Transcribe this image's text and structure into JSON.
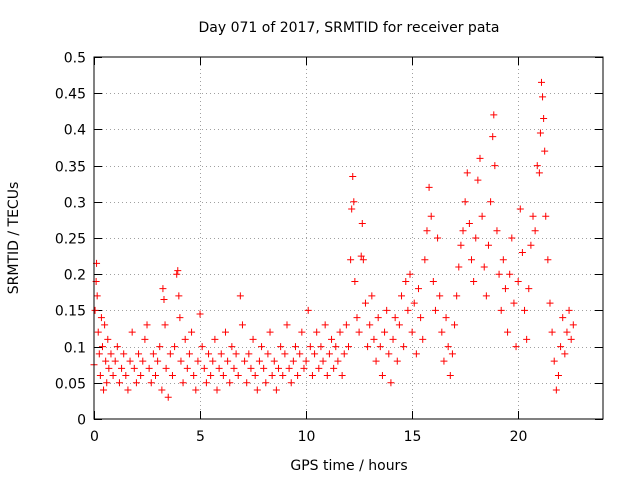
{
  "chart_data": {
    "type": "scatter",
    "title": "Day 071 of 2017, SRMTID for receiver pata",
    "xlabel": "GPS time / hours",
    "ylabel": "SRMTID / TECUs",
    "xlim": [
      0,
      24
    ],
    "ylim": [
      0,
      0.5
    ],
    "xticks": [
      0,
      5,
      10,
      15,
      20
    ],
    "xtick_labels": [
      "0",
      "5",
      "10",
      "15",
      "20"
    ],
    "yticks": [
      0,
      0.05,
      0.1,
      0.15,
      0.2,
      0.25,
      0.3,
      0.35,
      0.4,
      0.45,
      0.5
    ],
    "ytick_labels": [
      "0",
      "0.05",
      "0.1",
      "0.15",
      "0.2",
      "0.25",
      "0.3",
      "0.35",
      "0.4",
      "0.45",
      "0.5"
    ],
    "grid": true,
    "marker": "+",
    "color": "#ff0000",
    "series": [
      {
        "name": "SRMTID",
        "points": [
          [
            0.0,
            0.075
          ],
          [
            0.05,
            0.15
          ],
          [
            0.1,
            0.19
          ],
          [
            0.12,
            0.215
          ],
          [
            0.15,
            0.17
          ],
          [
            0.2,
            0.12
          ],
          [
            0.25,
            0.09
          ],
          [
            0.3,
            0.06
          ],
          [
            0.35,
            0.14
          ],
          [
            0.4,
            0.1
          ],
          [
            0.45,
            0.04
          ],
          [
            0.5,
            0.13
          ],
          [
            0.55,
            0.08
          ],
          [
            0.6,
            0.05
          ],
          [
            0.65,
            0.11
          ],
          [
            0.7,
            0.07
          ],
          [
            0.8,
            0.09
          ],
          [
            0.9,
            0.06
          ],
          [
            1.0,
            0.08
          ],
          [
            1.1,
            0.1
          ],
          [
            1.2,
            0.05
          ],
          [
            1.3,
            0.07
          ],
          [
            1.4,
            0.09
          ],
          [
            1.5,
            0.06
          ],
          [
            1.6,
            0.04
          ],
          [
            1.7,
            0.08
          ],
          [
            1.8,
            0.12
          ],
          [
            1.9,
            0.07
          ],
          [
            2.0,
            0.05
          ],
          [
            2.1,
            0.09
          ],
          [
            2.2,
            0.06
          ],
          [
            2.3,
            0.08
          ],
          [
            2.4,
            0.11
          ],
          [
            2.5,
            0.13
          ],
          [
            2.6,
            0.07
          ],
          [
            2.7,
            0.05
          ],
          [
            2.8,
            0.09
          ],
          [
            2.9,
            0.06
          ],
          [
            3.0,
            0.08
          ],
          [
            3.1,
            0.1
          ],
          [
            3.2,
            0.04
          ],
          [
            3.25,
            0.18
          ],
          [
            3.3,
            0.165
          ],
          [
            3.35,
            0.13
          ],
          [
            3.4,
            0.07
          ],
          [
            3.5,
            0.03
          ],
          [
            3.6,
            0.09
          ],
          [
            3.7,
            0.06
          ],
          [
            3.8,
            0.1
          ],
          [
            3.9,
            0.2
          ],
          [
            3.95,
            0.205
          ],
          [
            4.0,
            0.17
          ],
          [
            4.05,
            0.14
          ],
          [
            4.1,
            0.08
          ],
          [
            4.2,
            0.05
          ],
          [
            4.3,
            0.11
          ],
          [
            4.4,
            0.07
          ],
          [
            4.5,
            0.09
          ],
          [
            4.6,
            0.12
          ],
          [
            4.7,
            0.06
          ],
          [
            4.8,
            0.04
          ],
          [
            4.9,
            0.08
          ],
          [
            5.0,
            0.145
          ],
          [
            5.1,
            0.1
          ],
          [
            5.2,
            0.07
          ],
          [
            5.3,
            0.05
          ],
          [
            5.4,
            0.09
          ],
          [
            5.5,
            0.06
          ],
          [
            5.6,
            0.08
          ],
          [
            5.7,
            0.11
          ],
          [
            5.8,
            0.04
          ],
          [
            5.9,
            0.07
          ],
          [
            6.0,
            0.09
          ],
          [
            6.1,
            0.06
          ],
          [
            6.2,
            0.12
          ],
          [
            6.3,
            0.08
          ],
          [
            6.4,
            0.05
          ],
          [
            6.5,
            0.1
          ],
          [
            6.6,
            0.07
          ],
          [
            6.7,
            0.09
          ],
          [
            6.8,
            0.06
          ],
          [
            6.9,
            0.17
          ],
          [
            7.0,
            0.13
          ],
          [
            7.1,
            0.08
          ],
          [
            7.2,
            0.05
          ],
          [
            7.3,
            0.09
          ],
          [
            7.4,
            0.07
          ],
          [
            7.5,
            0.11
          ],
          [
            7.6,
            0.06
          ],
          [
            7.7,
            0.04
          ],
          [
            7.8,
            0.08
          ],
          [
            7.9,
            0.1
          ],
          [
            8.0,
            0.07
          ],
          [
            8.1,
            0.05
          ],
          [
            8.2,
            0.09
          ],
          [
            8.3,
            0.12
          ],
          [
            8.4,
            0.06
          ],
          [
            8.5,
            0.08
          ],
          [
            8.6,
            0.04
          ],
          [
            8.7,
            0.07
          ],
          [
            8.8,
            0.1
          ],
          [
            8.9,
            0.06
          ],
          [
            9.0,
            0.09
          ],
          [
            9.1,
            0.13
          ],
          [
            9.2,
            0.07
          ],
          [
            9.3,
            0.05
          ],
          [
            9.4,
            0.08
          ],
          [
            9.5,
            0.1
          ],
          [
            9.6,
            0.06
          ],
          [
            9.7,
            0.09
          ],
          [
            9.8,
            0.12
          ],
          [
            9.9,
            0.07
          ],
          [
            10.0,
            0.08
          ],
          [
            10.1,
            0.15
          ],
          [
            10.2,
            0.1
          ],
          [
            10.3,
            0.06
          ],
          [
            10.4,
            0.09
          ],
          [
            10.5,
            0.12
          ],
          [
            10.6,
            0.07
          ],
          [
            10.7,
            0.1
          ],
          [
            10.8,
            0.08
          ],
          [
            10.9,
            0.13
          ],
          [
            11.0,
            0.06
          ],
          [
            11.1,
            0.09
          ],
          [
            11.2,
            0.11
          ],
          [
            11.3,
            0.07
          ],
          [
            11.4,
            0.1
          ],
          [
            11.5,
            0.08
          ],
          [
            11.6,
            0.12
          ],
          [
            11.7,
            0.06
          ],
          [
            11.8,
            0.09
          ],
          [
            11.9,
            0.13
          ],
          [
            12.0,
            0.1
          ],
          [
            12.1,
            0.22
          ],
          [
            12.15,
            0.29
          ],
          [
            12.2,
            0.335
          ],
          [
            12.25,
            0.3
          ],
          [
            12.3,
            0.19
          ],
          [
            12.4,
            0.14
          ],
          [
            12.5,
            0.12
          ],
          [
            12.6,
            0.225
          ],
          [
            12.65,
            0.27
          ],
          [
            12.7,
            0.22
          ],
          [
            12.8,
            0.16
          ],
          [
            12.9,
            0.1
          ],
          [
            13.0,
            0.13
          ],
          [
            13.1,
            0.17
          ],
          [
            13.2,
            0.11
          ],
          [
            13.3,
            0.08
          ],
          [
            13.4,
            0.14
          ],
          [
            13.5,
            0.1
          ],
          [
            13.6,
            0.06
          ],
          [
            13.7,
            0.12
          ],
          [
            13.8,
            0.15
          ],
          [
            13.9,
            0.09
          ],
          [
            14.0,
            0.05
          ],
          [
            14.1,
            0.11
          ],
          [
            14.2,
            0.14
          ],
          [
            14.3,
            0.08
          ],
          [
            14.4,
            0.13
          ],
          [
            14.5,
            0.17
          ],
          [
            14.6,
            0.1
          ],
          [
            14.7,
            0.19
          ],
          [
            14.8,
            0.15
          ],
          [
            14.9,
            0.2
          ],
          [
            15.0,
            0.12
          ],
          [
            15.1,
            0.16
          ],
          [
            15.2,
            0.09
          ],
          [
            15.3,
            0.18
          ],
          [
            15.4,
            0.14
          ],
          [
            15.5,
            0.11
          ],
          [
            15.6,
            0.22
          ],
          [
            15.7,
            0.26
          ],
          [
            15.8,
            0.32
          ],
          [
            15.9,
            0.28
          ],
          [
            16.0,
            0.19
          ],
          [
            16.1,
            0.15
          ],
          [
            16.2,
            0.25
          ],
          [
            16.3,
            0.17
          ],
          [
            16.4,
            0.12
          ],
          [
            16.5,
            0.08
          ],
          [
            16.6,
            0.14
          ],
          [
            16.7,
            0.1
          ],
          [
            16.8,
            0.06
          ],
          [
            16.9,
            0.09
          ],
          [
            17.0,
            0.13
          ],
          [
            17.1,
            0.17
          ],
          [
            17.2,
            0.21
          ],
          [
            17.3,
            0.24
          ],
          [
            17.4,
            0.26
          ],
          [
            17.5,
            0.3
          ],
          [
            17.6,
            0.34
          ],
          [
            17.7,
            0.27
          ],
          [
            17.8,
            0.22
          ],
          [
            17.9,
            0.19
          ],
          [
            18.0,
            0.25
          ],
          [
            18.1,
            0.33
          ],
          [
            18.2,
            0.36
          ],
          [
            18.3,
            0.28
          ],
          [
            18.4,
            0.21
          ],
          [
            18.5,
            0.17
          ],
          [
            18.6,
            0.24
          ],
          [
            18.7,
            0.3
          ],
          [
            18.8,
            0.39
          ],
          [
            18.85,
            0.42
          ],
          [
            18.9,
            0.35
          ],
          [
            19.0,
            0.26
          ],
          [
            19.1,
            0.2
          ],
          [
            19.2,
            0.15
          ],
          [
            19.3,
            0.22
          ],
          [
            19.4,
            0.18
          ],
          [
            19.5,
            0.12
          ],
          [
            19.6,
            0.2
          ],
          [
            19.7,
            0.25
          ],
          [
            19.8,
            0.16
          ],
          [
            19.9,
            0.1
          ],
          [
            20.0,
            0.19
          ],
          [
            20.1,
            0.29
          ],
          [
            20.2,
            0.23
          ],
          [
            20.3,
            0.15
          ],
          [
            20.4,
            0.11
          ],
          [
            20.5,
            0.18
          ],
          [
            20.6,
            0.24
          ],
          [
            20.7,
            0.28
          ],
          [
            20.8,
            0.26
          ],
          [
            20.9,
            0.35
          ],
          [
            21.0,
            0.34
          ],
          [
            21.05,
            0.395
          ],
          [
            21.1,
            0.465
          ],
          [
            21.15,
            0.445
          ],
          [
            21.2,
            0.415
          ],
          [
            21.25,
            0.37
          ],
          [
            21.3,
            0.28
          ],
          [
            21.4,
            0.22
          ],
          [
            21.5,
            0.16
          ],
          [
            21.6,
            0.12
          ],
          [
            21.7,
            0.08
          ],
          [
            21.8,
            0.04
          ],
          [
            21.9,
            0.06
          ],
          [
            22.0,
            0.1
          ],
          [
            22.1,
            0.14
          ],
          [
            22.2,
            0.09
          ],
          [
            22.3,
            0.12
          ],
          [
            22.4,
            0.15
          ],
          [
            22.5,
            0.11
          ],
          [
            22.6,
            0.13
          ]
        ]
      }
    ]
  }
}
